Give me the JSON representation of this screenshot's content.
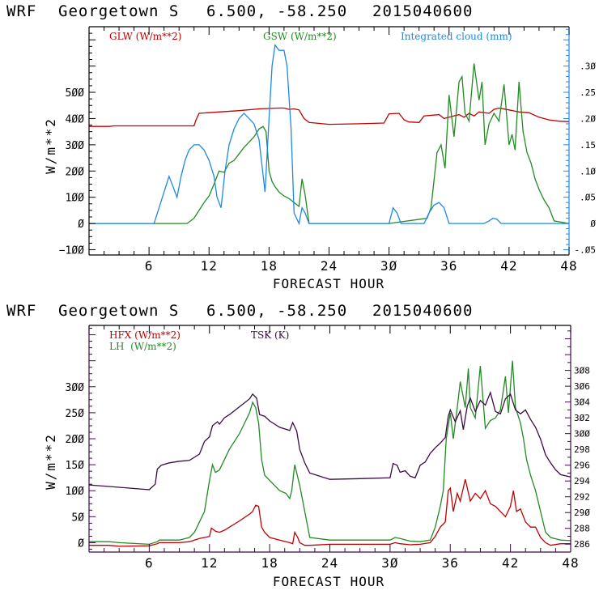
{
  "chart_data": [
    {
      "type": "line",
      "title": "WRF   Georgetown S   6.500, -58.250  2015040600",
      "xlabel": "FORECAST HOUR",
      "ylabel": "W/m**2",
      "y2label": "Integrated cloud (mm)",
      "xlim": [
        0,
        48
      ],
      "ylim": [
        -120,
        750
      ],
      "y2lim": [
        -0.06,
        0.375
      ],
      "xticks": [
        6,
        12,
        18,
        24,
        30,
        36,
        42,
        48
      ],
      "yticks": [
        -100,
        0,
        100,
        200,
        300,
        400,
        500
      ],
      "y2ticks": [
        -0.05,
        0,
        0.05,
        0.1,
        0.15,
        0.2,
        0.25,
        0.3
      ],
      "y2ticklabels": [
        "-.05",
        "0",
        ".05",
        ".10",
        ".15",
        ".20",
        ".25",
        ".30"
      ],
      "grid": false,
      "legend": "top",
      "series": [
        {
          "name": "GLW (W/m**2)",
          "axis": "left",
          "color": "#c00000",
          "x": [
            0,
            2,
            2.5,
            10.5,
            10.7,
            11,
            13,
            15,
            17,
            19,
            19.5,
            20,
            20.5,
            21,
            21.5,
            22,
            24,
            27,
            29.5,
            30,
            31,
            31.5,
            32,
            33,
            33.5,
            35,
            35.5,
            36,
            37,
            37.5,
            38,
            38.5,
            39,
            40,
            40.5,
            41,
            42,
            43,
            44,
            45,
            46,
            47,
            48
          ],
          "values": [
            370,
            370,
            372,
            372,
            395,
            420,
            425,
            430,
            437,
            440,
            440,
            435,
            437,
            433,
            400,
            385,
            378,
            380,
            383,
            418,
            420,
            395,
            387,
            385,
            410,
            415,
            400,
            405,
            415,
            405,
            420,
            410,
            425,
            420,
            435,
            440,
            433,
            425,
            422,
            405,
            395,
            390,
            388
          ]
        },
        {
          "name": "GSW (W/m**2)",
          "axis": "left",
          "color": "#228b22",
          "x": [
            0,
            9.8,
            10.5,
            11,
            11.5,
            12,
            12.5,
            13,
            13.5,
            14,
            14.5,
            15,
            15.5,
            16,
            16.5,
            17,
            17.4,
            17.7,
            18,
            18.3,
            18.6,
            19,
            19.5,
            20,
            20.5,
            21,
            21.3,
            21.6,
            22,
            22.5,
            30,
            33.8,
            34.2,
            34.8,
            35.2,
            35.6,
            36,
            36.5,
            37,
            37.3,
            37.6,
            38,
            38.5,
            39,
            39.3,
            39.6,
            40,
            40.5,
            41,
            41.5,
            42,
            42.3,
            42.6,
            43,
            43.4,
            43.8,
            44.2,
            44.6,
            45,
            45.5,
            46,
            46.5,
            48
          ],
          "values": [
            0,
            0,
            20,
            50,
            80,
            105,
            150,
            200,
            195,
            230,
            240,
            265,
            290,
            310,
            330,
            360,
            370,
            350,
            200,
            160,
            140,
            120,
            105,
            95,
            80,
            65,
            170,
            110,
            0,
            0,
            0,
            20,
            60,
            270,
            300,
            210,
            490,
            330,
            540,
            560,
            420,
            390,
            610,
            470,
            540,
            300,
            380,
            420,
            390,
            530,
            300,
            340,
            280,
            540,
            350,
            270,
            230,
            170,
            130,
            90,
            60,
            10,
            0
          ]
        },
        {
          "name": "Integrated cloud (mm)",
          "axis": "right",
          "color": "#1e88e5",
          "x": [
            0,
            6.5,
            7,
            7.5,
            8,
            8.4,
            8.8,
            9.2,
            9.6,
            10,
            10.5,
            11,
            11.5,
            12,
            12.5,
            12.8,
            13.2,
            13.6,
            14,
            14.5,
            15,
            15.5,
            16,
            16.5,
            17,
            17.3,
            17.6,
            18,
            18.3,
            18.6,
            19,
            19.5,
            19.8,
            20.2,
            20.5,
            21,
            21.3,
            21.6,
            22,
            30,
            30.4,
            30.8,
            31.2,
            33.5,
            34,
            34.5,
            35,
            35.5,
            36,
            39.5,
            40,
            40.4,
            40.8,
            41.2,
            48
          ],
          "values": [
            0,
            0,
            0.03,
            0.06,
            0.09,
            0.07,
            0.05,
            0.09,
            0.12,
            0.14,
            0.15,
            0.15,
            0.14,
            0.12,
            0.09,
            0.05,
            0.03,
            0.1,
            0.15,
            0.18,
            0.2,
            0.21,
            0.2,
            0.19,
            0.16,
            0.11,
            0.06,
            0.2,
            0.3,
            0.34,
            0.33,
            0.33,
            0.3,
            0.18,
            0.02,
            0,
            0.03,
            0.02,
            0,
            0,
            0.03,
            0.02,
            0,
            0,
            0.02,
            0.035,
            0.04,
            0.03,
            0,
            0,
            0.005,
            0.01,
            0.008,
            0,
            0
          ]
        }
      ]
    },
    {
      "type": "line",
      "title": "WRF   Georgetown S   6.500, -58.250  2015040600",
      "xlabel": "FORECAST HOUR",
      "ylabel": "W/m**2",
      "y2label": "TSK (K)",
      "xlim": [
        0,
        48
      ],
      "ylim": [
        -18,
        418
      ],
      "y2lim": [
        285,
        313.7
      ],
      "xticks": [
        6,
        12,
        18,
        24,
        30,
        36,
        42,
        48
      ],
      "yticks": [
        0,
        50,
        100,
        150,
        200,
        250,
        300
      ],
      "y2ticks": [
        286,
        288,
        290,
        292,
        294,
        296,
        298,
        300,
        302,
        304,
        306,
        308
      ],
      "grid": false,
      "legend": "top-left",
      "series": [
        {
          "name": "HFX (W/m**2)",
          "axis": "left",
          "color": "#c00000",
          "x": [
            0,
            2,
            3,
            6,
            6.8,
            7,
            9,
            10,
            11,
            11.5,
            12,
            12.2,
            12.6,
            13,
            13.5,
            14,
            15,
            16,
            16.3,
            16.6,
            16.9,
            17.2,
            17.5,
            18,
            19,
            20,
            20.3,
            20.5,
            20.8,
            21,
            21.5,
            22,
            24,
            27,
            30,
            30.5,
            31,
            32,
            33,
            34,
            34.5,
            35,
            35.5,
            35.8,
            36,
            36.3,
            36.7,
            37,
            37.5,
            38,
            38.5,
            39,
            39.5,
            40,
            40.5,
            41,
            41.5,
            42,
            42.3,
            42.6,
            43,
            43.5,
            44,
            44.5,
            45,
            45.5,
            46,
            47,
            48
          ],
          "values": [
            -5,
            -5,
            -7,
            -6,
            -2,
            0,
            0,
            2,
            8,
            10,
            12,
            28,
            22,
            20,
            24,
            30,
            42,
            55,
            60,
            72,
            70,
            30,
            20,
            10,
            5,
            0,
            -2,
            20,
            10,
            0,
            -5,
            -5,
            -3,
            -3,
            -3,
            0,
            -2,
            -4,
            -3,
            0,
            12,
            30,
            40,
            100,
            105,
            60,
            95,
            80,
            122,
            80,
            95,
            85,
            100,
            75,
            70,
            60,
            50,
            70,
            100,
            60,
            65,
            40,
            30,
            30,
            10,
            0,
            -5,
            -2,
            -2
          ]
        },
        {
          "name": "LH (W/m**2)",
          "axis": "left",
          "color": "#228b22",
          "x": [
            0,
            2,
            3,
            6,
            6.8,
            7,
            9,
            10,
            10.5,
            11,
            11.5,
            12,
            12.3,
            12.6,
            13,
            13.5,
            14,
            15,
            16,
            16.3,
            16.6,
            16.9,
            17.2,
            17.5,
            18,
            19,
            19.6,
            20,
            20.2,
            20.5,
            21,
            21.5,
            22,
            24,
            30,
            30.5,
            31,
            32,
            33,
            34,
            34.5,
            35,
            35.3,
            35.6,
            36,
            36.3,
            36.7,
            37,
            37.5,
            37.8,
            38,
            38.5,
            39,
            39.5,
            40,
            40.5,
            41,
            41.5,
            41.8,
            42.2,
            42.5,
            43,
            43.3,
            43.6,
            44,
            44.5,
            45,
            45.5,
            46,
            47,
            48
          ],
          "values": [
            2,
            2,
            0,
            -3,
            2,
            5,
            5,
            10,
            20,
            40,
            60,
            120,
            150,
            135,
            140,
            160,
            180,
            210,
            250,
            270,
            260,
            230,
            160,
            130,
            120,
            100,
            95,
            85,
            100,
            150,
            110,
            60,
            10,
            5,
            5,
            10,
            8,
            3,
            2,
            5,
            30,
            70,
            100,
            200,
            250,
            200,
            260,
            310,
            260,
            335,
            260,
            240,
            340,
            220,
            235,
            240,
            255,
            320,
            250,
            350,
            260,
            230,
            200,
            160,
            130,
            100,
            60,
            20,
            10,
            5,
            4
          ]
        },
        {
          "name": "TSK (K)",
          "axis": "right",
          "color": "#3b0a45",
          "x": [
            0,
            2,
            3,
            5,
            6,
            6.6,
            6.8,
            7.2,
            8,
            9,
            10,
            11,
            11.5,
            12,
            12.3,
            12.8,
            13,
            13.5,
            14,
            15,
            16,
            16.3,
            16.7,
            17,
            17.5,
            18,
            19,
            20,
            20.3,
            20.7,
            21,
            21.5,
            22,
            24,
            27,
            30,
            30.3,
            30.7,
            31,
            31.5,
            32,
            32.5,
            33,
            33.5,
            34,
            34.5,
            35,
            35.5,
            35.8,
            36,
            36.5,
            37,
            37.3,
            37.7,
            38,
            38.5,
            39,
            39.5,
            40,
            40.5,
            41,
            41.5,
            42,
            42.5,
            43,
            43.5,
            44,
            44.5,
            45,
            45.5,
            46,
            46.5,
            47,
            48
          ],
          "values": [
            293.5,
            293.3,
            293.2,
            293.0,
            292.9,
            293.6,
            295.5,
            296.0,
            296.3,
            296.5,
            296.6,
            297.4,
            299.0,
            299.6,
            301.0,
            301.5,
            301.2,
            302.0,
            302.4,
            303.4,
            304.4,
            305.0,
            304.5,
            302.4,
            302.2,
            301.6,
            300.8,
            300.4,
            301.4,
            300.3,
            298.0,
            296.3,
            295.0,
            294.2,
            294.3,
            294.4,
            296.2,
            296.0,
            295.1,
            295.3,
            294.6,
            294.4,
            296.0,
            296.4,
            297.5,
            298.2,
            298.8,
            299.5,
            302.2,
            303.0,
            301.5,
            302.9,
            300.5,
            303.5,
            304.5,
            302.8,
            304.2,
            303.6,
            305.2,
            302.8,
            302.5,
            304.4,
            305.0,
            303.0,
            302.5,
            303.0,
            301.8,
            300.8,
            299.3,
            297.3,
            296.3,
            295.4,
            294.8,
            294.5
          ]
        }
      ]
    }
  ],
  "plots": [
    {
      "title_parts": [
        "WRF",
        "Georgetown S",
        "6.500, -58.250",
        "2015040600"
      ],
      "xlabel": "FORECAST HOUR",
      "ylabel": "W/m**2",
      "legend": [
        {
          "label": "GLW (W/m**2)",
          "color": "#c00000"
        },
        {
          "label": "GSW (W/m**2)",
          "color": "#228b22"
        },
        {
          "label": "Integrated cloud (mm)",
          "color": "#1e88e5"
        }
      ],
      "axis_colors": {
        "left": "#000000",
        "right": "#1e88e5"
      }
    },
    {
      "title_parts": [
        "WRF",
        "Georgetown S",
        "6.500, -58.250",
        "2015040600"
      ],
      "xlabel": "FORECAST HOUR",
      "ylabel": "W/m**2",
      "legend": [
        {
          "label": "HFX (W/m**2)",
          "color": "#c00000"
        },
        {
          "label": "LH  (W/m**2)",
          "color": "#228b22"
        },
        {
          "label": "TSK (K)",
          "color": "#3b0a45"
        }
      ],
      "axis_colors": {
        "left": "#3b0a45",
        "right": "#3b0a45"
      }
    }
  ]
}
